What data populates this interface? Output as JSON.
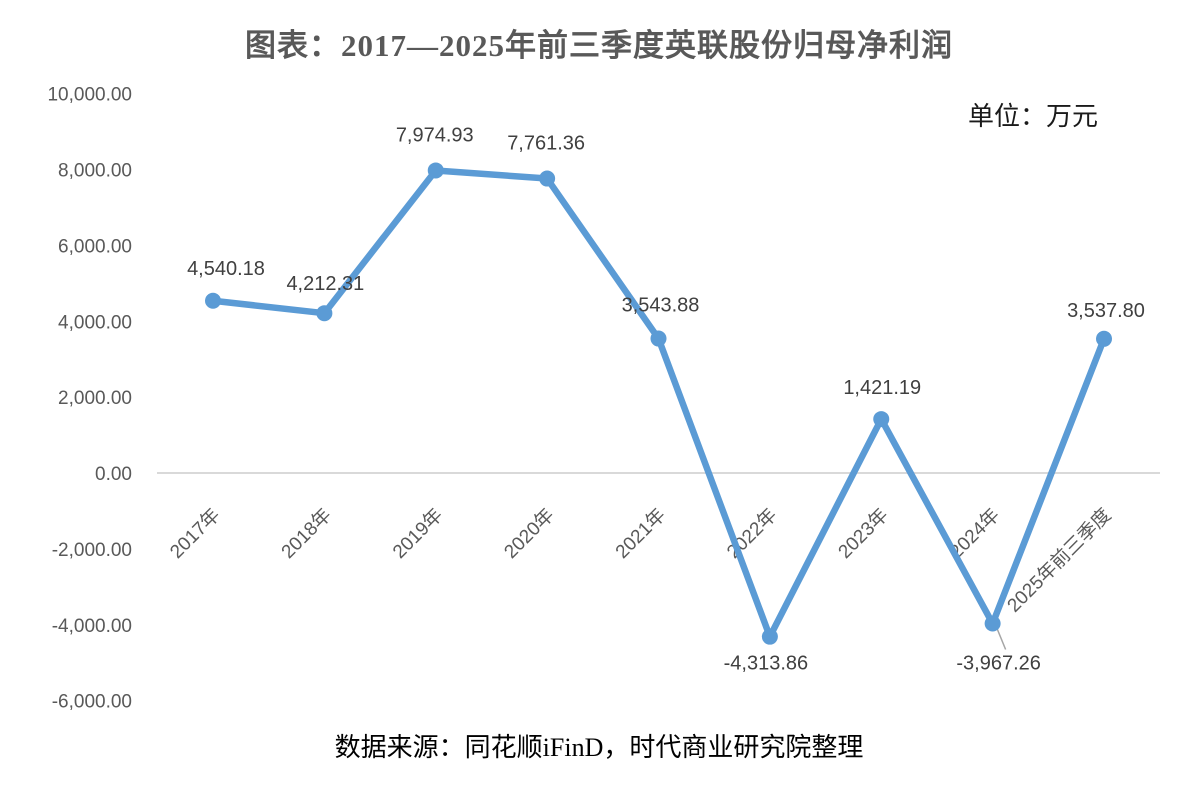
{
  "header": {
    "title": "图表：2017—2025年前三季度英联股份归母净利润",
    "unit": "单位：万元"
  },
  "footer": {
    "source": "数据来源：同花顺iFinD，时代商业研究院整理"
  },
  "chart_data": {
    "type": "line",
    "title": "图表：2017—2025年前三季度英联股份归母净利润",
    "unit_label": "单位：万元",
    "source": "数据来源：同花顺iFinD，时代商业研究院整理",
    "categories": [
      "2017年",
      "2018年",
      "2019年",
      "2020年",
      "2021年",
      "2022年",
      "2023年",
      "2024年",
      "2025年前三季度"
    ],
    "values": [
      4540.18,
      4212.31,
      7974.93,
      7761.36,
      3543.88,
      -4313.86,
      1421.19,
      -3967.26,
      3537.8
    ],
    "data_labels": [
      "4,540.18",
      "4,212.31",
      "7,974.93",
      "7,761.36",
      "3,543.88",
      "-4,313.86",
      "1,421.19",
      "-3,967.26",
      "3,537.80"
    ],
    "data_label_positions": [
      "above",
      "above",
      "above",
      "above",
      "above",
      "below",
      "above",
      "below",
      "above"
    ],
    "y_ticks": [
      {
        "value": 10000,
        "label": "10,000.00"
      },
      {
        "value": 8000,
        "label": "8,000.00"
      },
      {
        "value": 6000,
        "label": "6,000.00"
      },
      {
        "value": 4000,
        "label": "4,000.00"
      },
      {
        "value": 2000,
        "label": "2,000.00"
      },
      {
        "value": 0,
        "label": "0.00"
      },
      {
        "value": -2000,
        "label": "-2,000.00"
      },
      {
        "value": -4000,
        "label": "-4,000.00"
      },
      {
        "value": -6000,
        "label": "-6,000.00"
      }
    ],
    "xlabel": "",
    "ylabel": "",
    "ylim": [
      -6000,
      10000
    ],
    "grid": "zero-axis-line-only",
    "legend": "none",
    "x_labels_rotation_deg": -45,
    "leader_line_category_index": 7,
    "colors": {
      "series": "#5B9BD5",
      "zero_axis_line": "#D9D9D9",
      "tick_text": "#595959",
      "data_label_text": "#404040",
      "title_text": "#595959",
      "leader_line": "#A6A6A6",
      "background": "#FFFFFF"
    }
  }
}
